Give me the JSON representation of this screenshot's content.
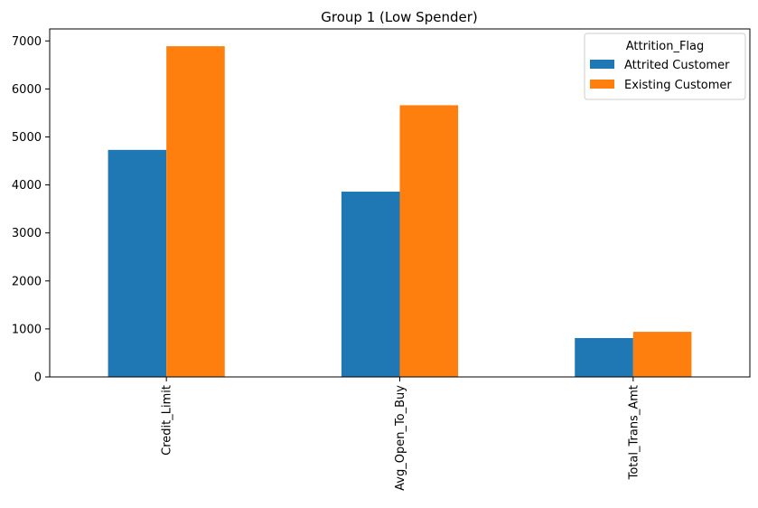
{
  "chart_data": {
    "type": "bar",
    "title": "Group 1 (Low Spender)",
    "xlabel": "",
    "ylabel": "",
    "categories": [
      "Credit_Limit",
      "Avg_Open_To_Buy",
      "Total_Trans_Amt"
    ],
    "series": [
      {
        "name": "Attrited Customer",
        "values": [
          4730,
          3860,
          810
        ],
        "color": "#1f77b4"
      },
      {
        "name": "Existing Customer",
        "values": [
          6890,
          5660,
          940
        ],
        "color": "#ff7f0e"
      }
    ],
    "ylim": [
      0,
      7250
    ],
    "yticks": [
      0,
      1000,
      2000,
      3000,
      4000,
      5000,
      6000,
      7000
    ],
    "grid": false,
    "legend": {
      "title": "Attrition_Flag",
      "placement": "top-right"
    }
  }
}
